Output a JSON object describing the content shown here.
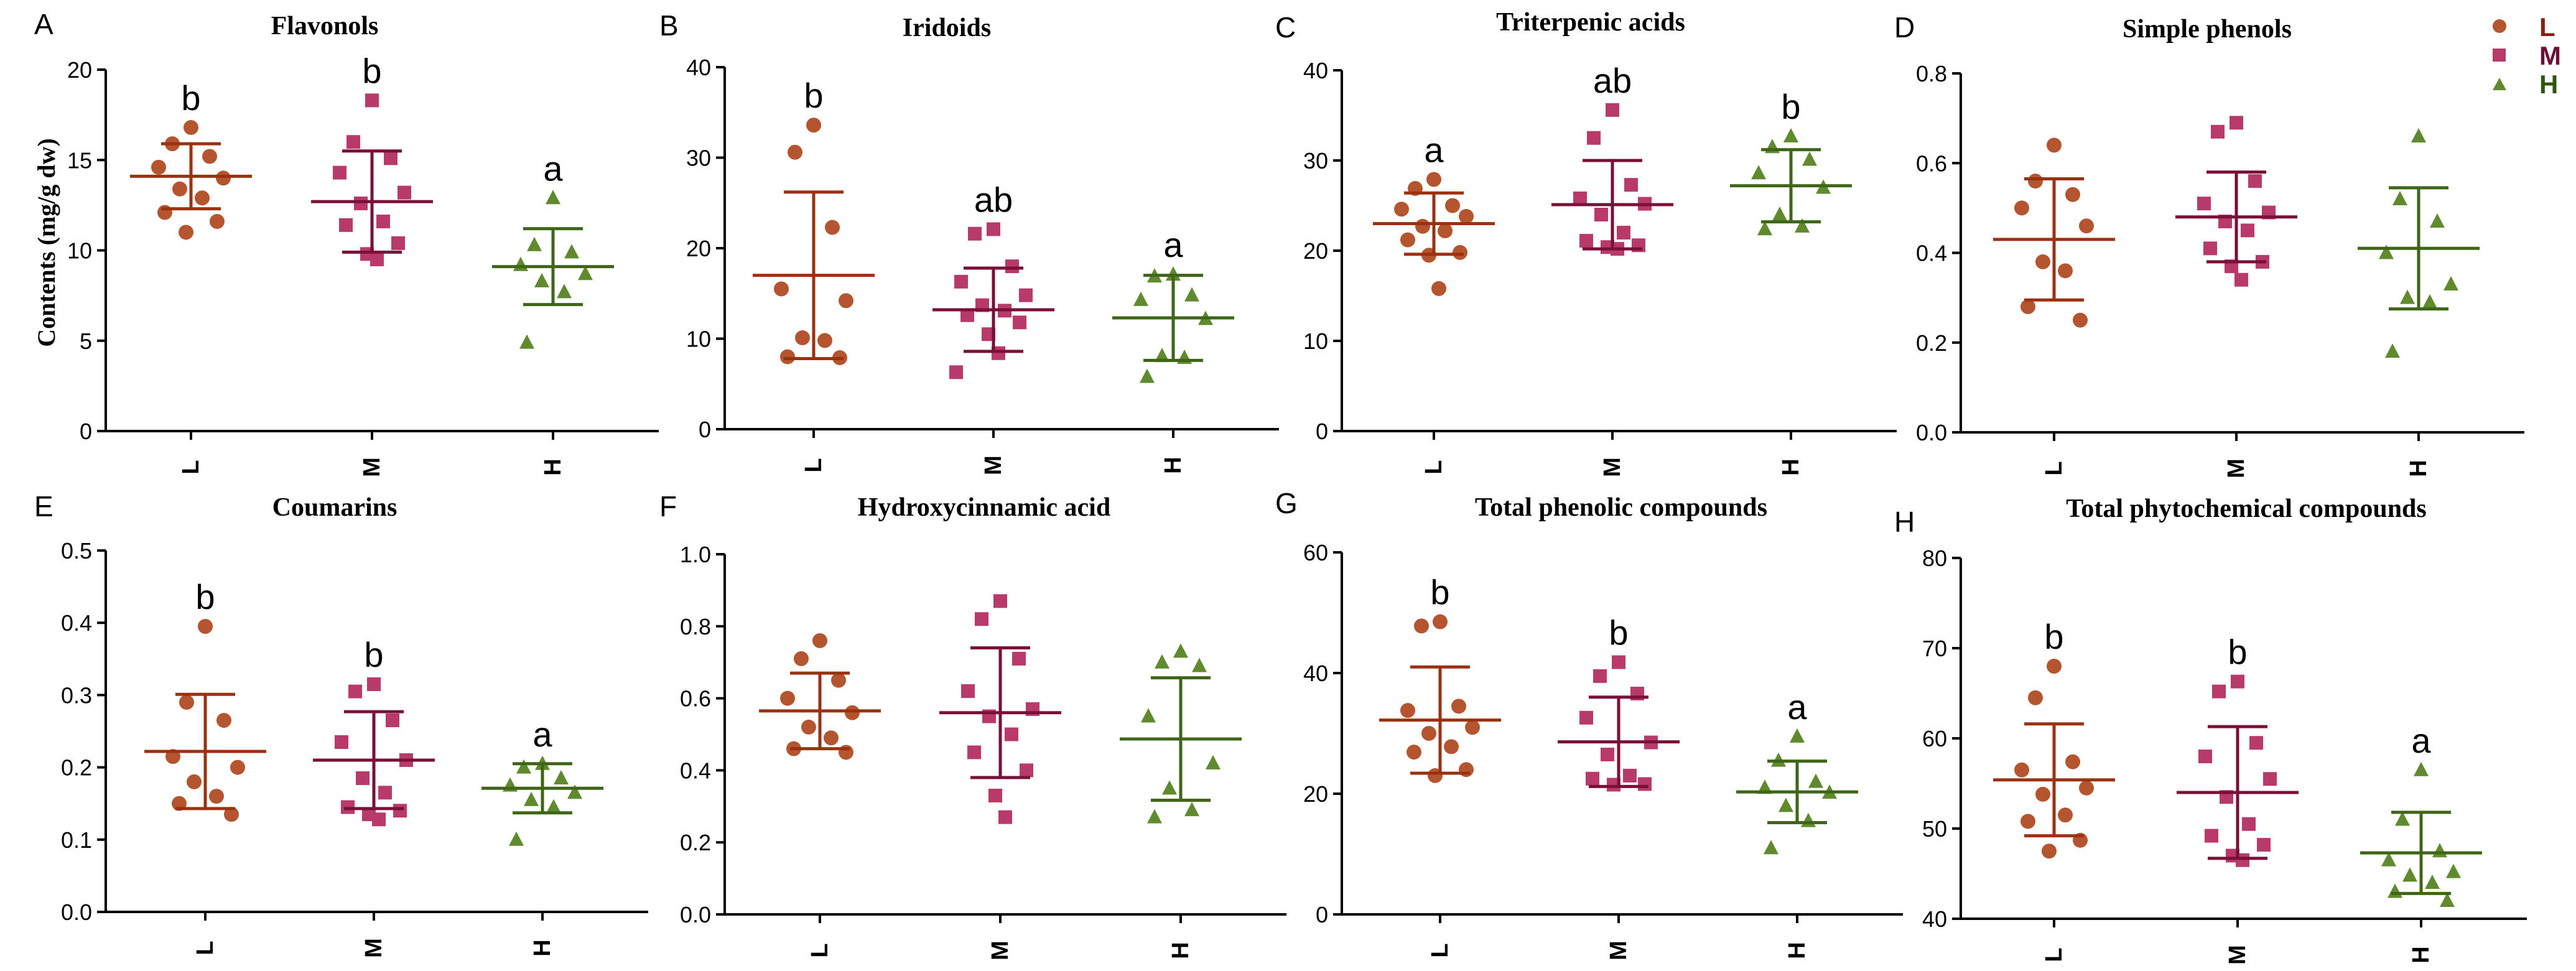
{
  "figure": {
    "ylabel": "Contents (mg/g dw)",
    "legend": [
      {
        "label": "L",
        "color": "#b5552f",
        "marker": "circle"
      },
      {
        "label": "M",
        "color": "#b83a6a",
        "marker": "square"
      },
      {
        "label": "H",
        "color": "#5f8a2e",
        "marker": "triangle"
      }
    ],
    "line_colors": {
      "L": "#9a3212",
      "M": "#7a1038",
      "H": "#3f6618"
    }
  },
  "chart_data": [
    {
      "type": "scatter",
      "panel": "A",
      "title": "Flavonols",
      "categories": [
        "L",
        "M",
        "H"
      ],
      "ylim": [
        0,
        20
      ],
      "yticks": [
        "0",
        "5",
        "10",
        "15",
        "20"
      ],
      "mean": [
        14.1,
        12.7,
        9.1
      ],
      "sd": [
        1.8,
        2.8,
        2.1
      ],
      "letters": [
        "b",
        "b",
        "a"
      ],
      "points": [
        [
          16.8,
          15.9,
          15.2,
          14.6,
          14.0,
          13.4,
          12.9,
          12.1,
          11.6,
          11.0
        ],
        [
          18.3,
          16.0,
          15.1,
          14.3,
          13.2,
          12.6,
          11.6,
          11.4,
          10.4,
          9.8,
          9.5
        ],
        [
          12.9,
          10.3,
          9.9,
          9.2,
          8.7,
          8.3,
          7.7,
          4.9
        ]
      ]
    },
    {
      "type": "scatter",
      "panel": "B",
      "title": "Iridoids",
      "categories": [
        "L",
        "M",
        "H"
      ],
      "ylim": [
        0,
        40
      ],
      "yticks": [
        "0",
        "10",
        "20",
        "30",
        "40"
      ],
      "mean": [
        17.0,
        13.2,
        12.3
      ],
      "sd": [
        9.2,
        4.6,
        4.7
      ],
      "letters": [
        "b",
        "ab",
        "a"
      ],
      "points": [
        [
          33.6,
          30.6,
          22.3,
          15.5,
          14.2,
          10.1,
          9.8,
          8.0,
          7.9
        ],
        [
          22.1,
          21.6,
          18.0,
          16.3,
          14.8,
          13.7,
          13.1,
          12.6,
          11.8,
          10.5,
          8.4,
          6.3
        ],
        [
          17.1,
          16.9,
          14.8,
          14.3,
          12.2,
          8.1,
          7.9,
          5.8
        ]
      ]
    },
    {
      "type": "scatter",
      "panel": "C",
      "title": "Triterpenic acids",
      "categories": [
        "L",
        "M",
        "H"
      ],
      "ylim": [
        0,
        40
      ],
      "yticks": [
        "0",
        "10",
        "20",
        "30",
        "40"
      ],
      "mean": [
        23.0,
        25.1,
        27.2
      ],
      "sd": [
        3.4,
        4.9,
        4.0
      ],
      "letters": [
        "a",
        "ab",
        "b"
      ],
      "points": [
        [
          27.9,
          26.9,
          25.0,
          24.6,
          23.8,
          22.7,
          22.2,
          21.2,
          19.8,
          19.5,
          15.8
        ],
        [
          35.6,
          32.5,
          27.3,
          25.8,
          25.2,
          24.0,
          22.0,
          21.1,
          20.6,
          20.4,
          20.2
        ],
        [
          32.7,
          31.5,
          30.1,
          28.6,
          27.0,
          24.0,
          22.7,
          22.4
        ]
      ]
    },
    {
      "type": "scatter",
      "panel": "D",
      "title": "Simple phenols",
      "categories": [
        "L",
        "M",
        "H"
      ],
      "ylim": [
        0.0,
        0.8
      ],
      "yticks": [
        "0.0",
        "0.2",
        "0.4",
        "0.6",
        "0.8"
      ],
      "mean": [
        0.43,
        0.48,
        0.41
      ],
      "sd": [
        0.135,
        0.1,
        0.135
      ],
      "letters": [
        "",
        "",
        ""
      ],
      "points": [
        [
          0.64,
          0.56,
          0.53,
          0.5,
          0.46,
          0.38,
          0.36,
          0.28,
          0.25
        ],
        [
          0.69,
          0.67,
          0.56,
          0.51,
          0.49,
          0.47,
          0.45,
          0.41,
          0.38,
          0.37,
          0.34
        ],
        [
          0.66,
          0.52,
          0.47,
          0.4,
          0.33,
          0.3,
          0.29,
          0.18
        ]
      ]
    },
    {
      "type": "scatter",
      "panel": "E",
      "title": "Coumarins",
      "categories": [
        "L",
        "M",
        "H"
      ],
      "ylim": [
        0.0,
        0.5
      ],
      "yticks": [
        "0.0",
        "0.1",
        "0.2",
        "0.3",
        "0.4",
        "0.5"
      ],
      "mean": [
        0.222,
        0.21,
        0.171
      ],
      "sd": [
        0.079,
        0.067,
        0.034
      ],
      "letters": [
        "b",
        "b",
        "a"
      ],
      "points": [
        [
          0.395,
          0.29,
          0.265,
          0.215,
          0.2,
          0.18,
          0.16,
          0.15,
          0.135
        ],
        [
          0.315,
          0.305,
          0.265,
          0.235,
          0.21,
          0.185,
          0.165,
          0.145,
          0.14,
          0.135,
          0.128
        ],
        [
          0.205,
          0.2,
          0.185,
          0.175,
          0.165,
          0.155,
          0.145,
          0.1
        ]
      ]
    },
    {
      "type": "scatter",
      "panel": "F",
      "title": "Hydroxycinnamic acid",
      "categories": [
        "L",
        "M",
        "H"
      ],
      "ylim": [
        0.0,
        1.0
      ],
      "yticks": [
        "0.0",
        "0.2",
        "0.4",
        "0.6",
        "0.8",
        "1.0"
      ],
      "mean": [
        0.565,
        0.56,
        0.487
      ],
      "sd": [
        0.105,
        0.18,
        0.17
      ],
      "letters": [
        "",
        "",
        ""
      ],
      "points": [
        [
          0.76,
          0.71,
          0.65,
          0.6,
          0.56,
          0.52,
          0.49,
          0.46,
          0.45
        ],
        [
          0.87,
          0.82,
          0.71,
          0.62,
          0.57,
          0.55,
          0.5,
          0.45,
          0.4,
          0.33,
          0.27
        ],
        [
          0.73,
          0.7,
          0.69,
          0.55,
          0.42,
          0.35,
          0.29,
          0.27
        ]
      ]
    },
    {
      "type": "scatter",
      "panel": "G",
      "title": "Total phenolic compounds",
      "categories": [
        "L",
        "M",
        "H"
      ],
      "ylim": [
        0,
        60
      ],
      "yticks": [
        "0",
        "20",
        "40",
        "60"
      ],
      "mean": [
        32.2,
        28.6,
        20.3
      ],
      "sd": [
        8.8,
        7.4,
        5.1
      ],
      "letters": [
        "b",
        "b",
        "a"
      ],
      "points": [
        [
          48.5,
          47.8,
          34.5,
          33.8,
          31.0,
          30.0,
          27.8,
          26.9,
          24.0,
          23.0
        ],
        [
          41.8,
          39.5,
          36.6,
          32.6,
          28.5,
          26.5,
          23.0,
          22.5,
          21.6,
          21.5
        ],
        [
          29.5,
          25.5,
          22.0,
          21.0,
          20.2,
          18.0,
          15.5,
          11.0
        ]
      ]
    },
    {
      "type": "scatter",
      "panel": "H",
      "title": "Total phytochemical compounds",
      "categories": [
        "L",
        "M",
        "H"
      ],
      "ylim": [
        40,
        80
      ],
      "yticks": [
        "40",
        "50",
        "60",
        "70",
        "80"
      ],
      "mean": [
        55.4,
        54.0,
        47.3
      ],
      "sd": [
        6.2,
        7.3,
        4.5
      ],
      "letters": [
        "b",
        "b",
        "a"
      ],
      "points": [
        [
          68.0,
          64.5,
          57.4,
          56.5,
          54.5,
          53.8,
          51.5,
          50.8,
          48.7,
          47.5
        ],
        [
          66.3,
          65.2,
          59.5,
          58.0,
          55.5,
          53.5,
          50.5,
          49.2,
          48.2,
          47.0,
          46.5
        ],
        [
          56.5,
          51.0,
          47.5,
          46.5,
          45.2,
          44.8,
          44.0,
          43.0,
          42.0
        ]
      ]
    }
  ]
}
